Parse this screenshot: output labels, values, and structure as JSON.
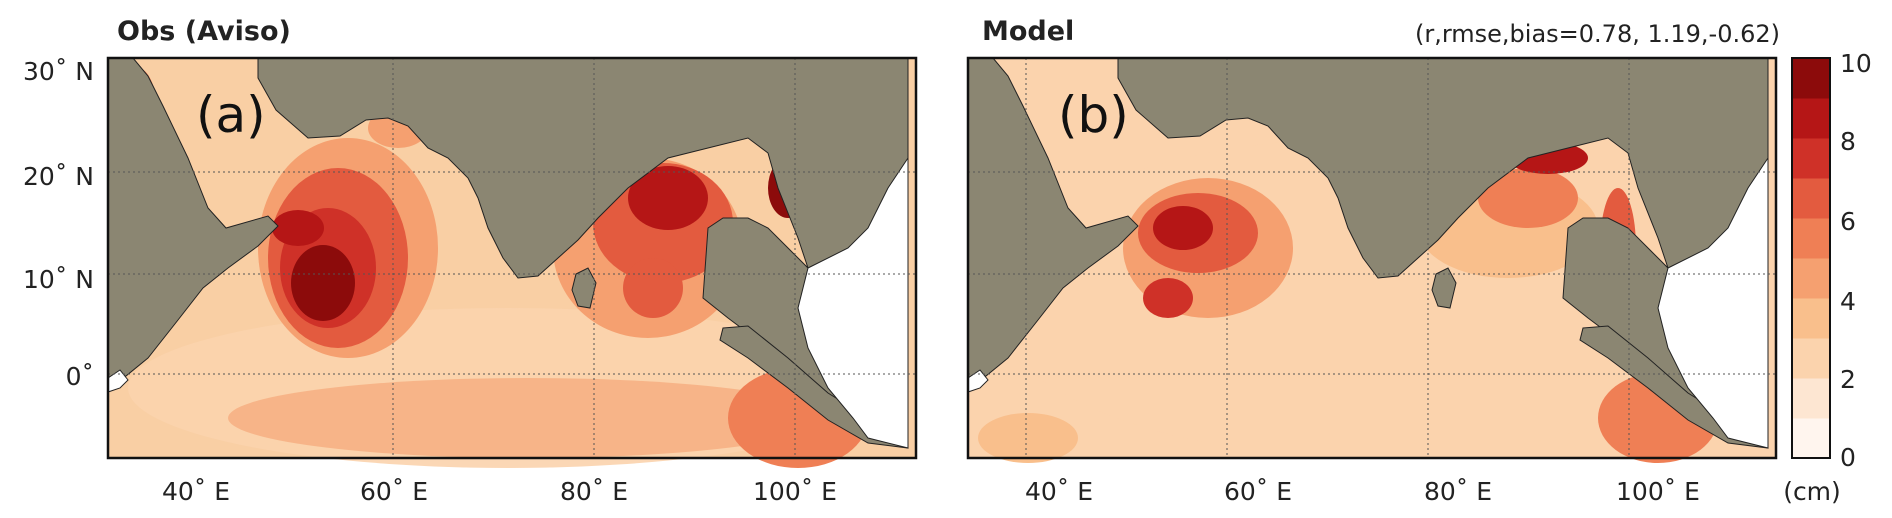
{
  "panels": [
    {
      "title": "Obs (Aviso)",
      "label": "(a)",
      "stats": ""
    },
    {
      "title": "Model",
      "label": "(b)",
      "stats": "(r,rmse,bias=0.78, 1.19,-0.62)"
    }
  ],
  "lat_ticks": [
    "30˚ N",
    "20˚ N",
    "10˚ N",
    "0˚"
  ],
  "lon_ticks": [
    "40˚ E",
    "60˚ E",
    "80˚ E",
    "100˚ E"
  ],
  "colorbar": {
    "ticks": [
      "10",
      "8",
      "6",
      "4",
      "2",
      "0"
    ],
    "unit": "(cm)",
    "levels": [
      0,
      1,
      2,
      3,
      4,
      5,
      6,
      7,
      8,
      9,
      10
    ],
    "colors": [
      "#fff5ee",
      "#fde6d2",
      "#fbd3ad",
      "#f9bf8c",
      "#f5a070",
      "#ef7f55",
      "#e35b3f",
      "#cf3128",
      "#b51616",
      "#8c0b0b"
    ]
  },
  "map_colors": {
    "land": "#8b8672",
    "ocean_low": "#f9cfa4",
    "ocean_mid": "#f5a070",
    "ocean_high": "#b51616",
    "external_land": "#ffffff"
  }
}
